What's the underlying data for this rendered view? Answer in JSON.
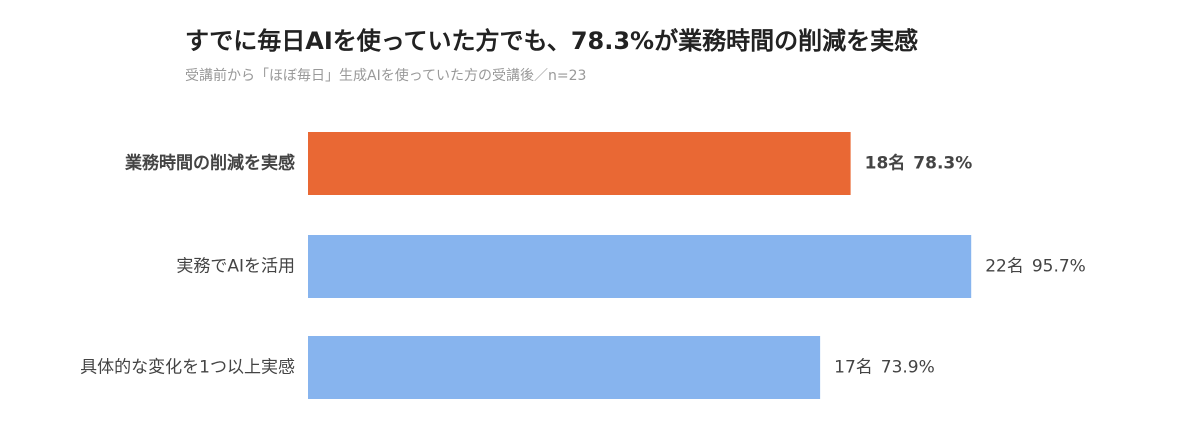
{
  "chart_data": {
    "type": "hbar",
    "title": "すでに毎日AIを使っていた方でも、78.3%が業務時間の削減を実感",
    "subtitle": "受講前から「ほぼ毎日」生成AIを使っていた方の受講後／n=23",
    "categories": [
      "業務時間の削減を実感",
      "実務でAIを活用",
      "具体的な変化を1つ以上実感"
    ],
    "values": [
      78.3,
      95.7,
      73.9
    ],
    "value_labels": [
      "78.3%",
      "95.7%",
      "73.9%"
    ],
    "count_labels": [
      "18名",
      "22名",
      "17名"
    ],
    "colors": [
      "#e96834",
      "#87b4ee",
      "#87b4ee"
    ],
    "emphasis": [
      true,
      false,
      false
    ],
    "xlim": [
      0,
      100
    ]
  }
}
